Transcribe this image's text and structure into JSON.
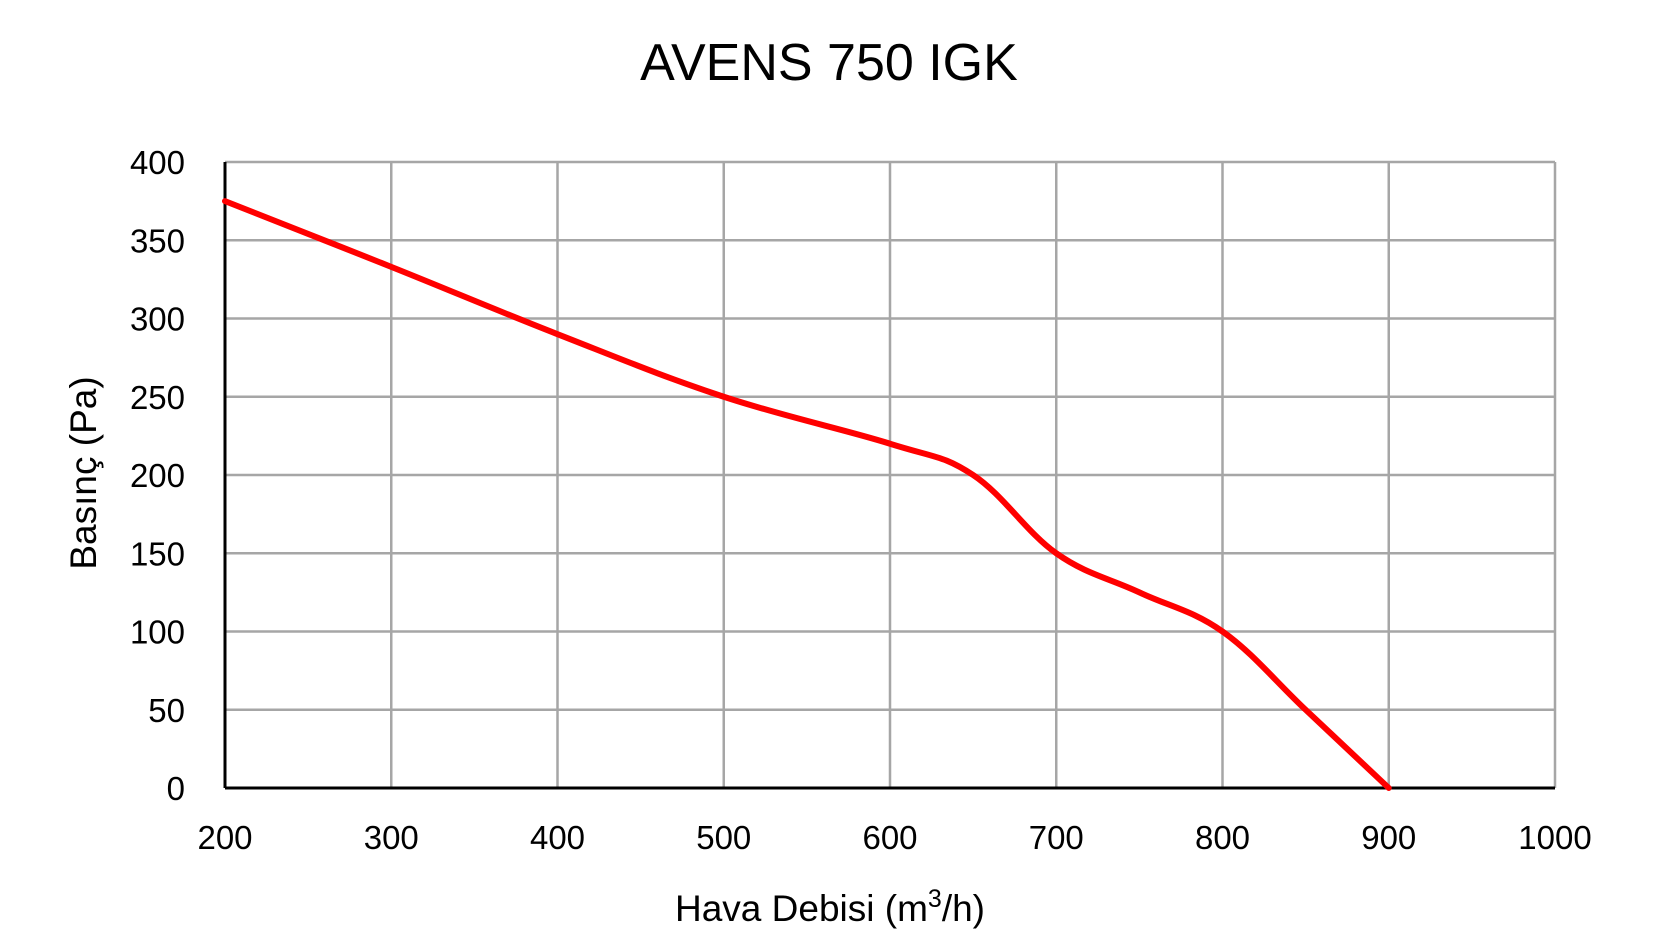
{
  "chart_data": {
    "type": "line",
    "title": "AVENS 750 IGK",
    "xlabel": {
      "main": "Hava Debisi (m",
      "superscript": "3",
      "suffix": "/h)"
    },
    "ylabel": "Basınç (Pa)",
    "xlim": [
      200,
      1000
    ],
    "ylim": [
      0,
      400
    ],
    "x_ticks": [
      200,
      300,
      400,
      500,
      600,
      700,
      800,
      900,
      1000
    ],
    "y_ticks": [
      0,
      50,
      100,
      150,
      200,
      250,
      300,
      350,
      400
    ],
    "grid": true,
    "legend": "none",
    "series": [
      {
        "color": "#ff0000",
        "points": [
          [
            200,
            375
          ],
          [
            300,
            333
          ],
          [
            400,
            290
          ],
          [
            500,
            250
          ],
          [
            600,
            220
          ],
          [
            650,
            200
          ],
          [
            700,
            150
          ],
          [
            750,
            125
          ],
          [
            800,
            100
          ],
          [
            850,
            50
          ],
          [
            900,
            0
          ]
        ]
      }
    ]
  }
}
